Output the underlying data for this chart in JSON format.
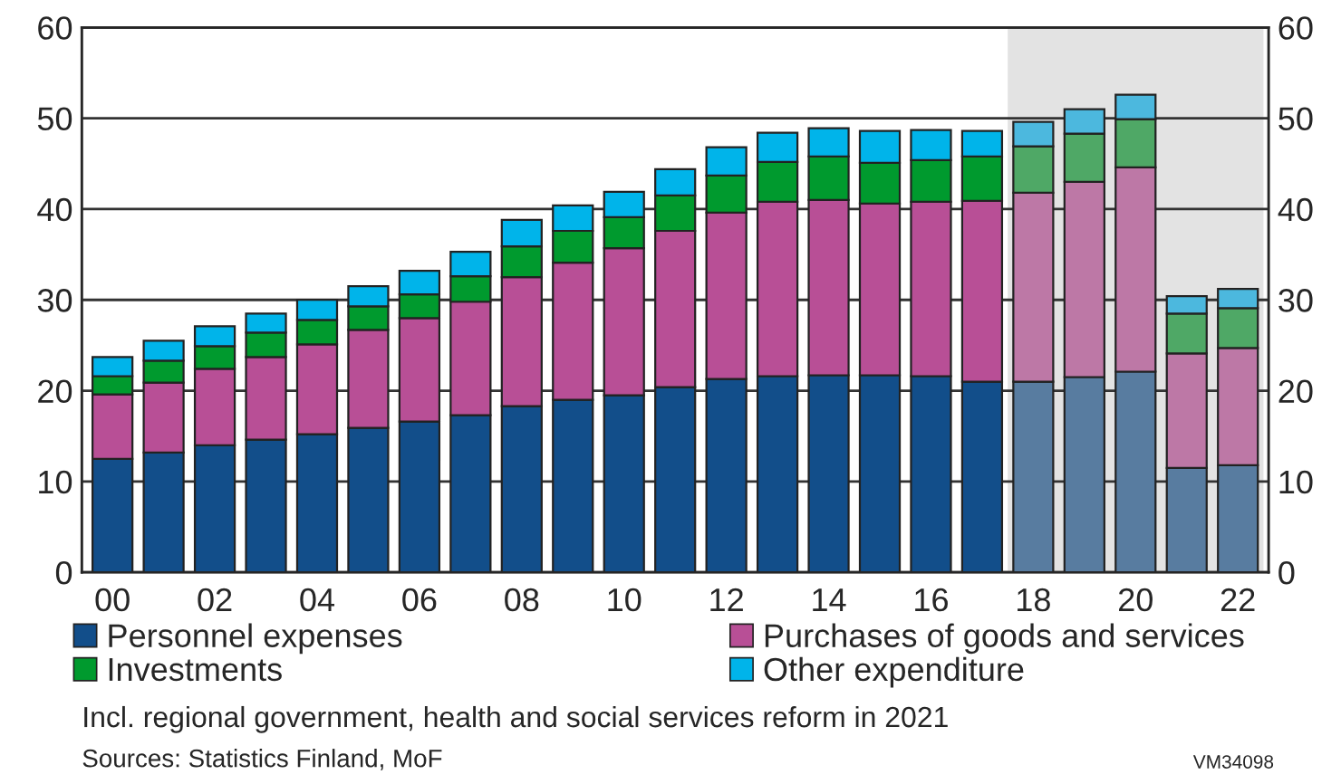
{
  "chart_data": {
    "type": "bar",
    "stacked": true,
    "categories": [
      "00",
      null,
      "02",
      null,
      "04",
      null,
      "06",
      null,
      "08",
      null,
      "10",
      null,
      "12",
      null,
      "14",
      null,
      "16",
      null,
      "18",
      null,
      "20",
      null,
      "22"
    ],
    "series": [
      {
        "name": "Personnel expenses",
        "colors": [
          "#124e8a",
          "#124e8a",
          "#124e8a",
          "#124e8a",
          "#124e8a",
          "#124e8a",
          "#124e8a",
          "#124e8a",
          "#124e8a",
          "#124e8a",
          "#124e8a",
          "#124e8a",
          "#124e8a",
          "#124e8a",
          "#124e8a",
          "#124e8a",
          "#124e8a",
          "#124e8a",
          "#587ca0",
          "#587ca0",
          "#587ca0",
          "#587ca0",
          "#587ca0"
        ],
        "values": [
          12.5,
          13.2,
          14.0,
          14.6,
          15.2,
          15.9,
          16.6,
          17.3,
          18.3,
          19.0,
          19.5,
          20.4,
          21.3,
          21.6,
          21.7,
          21.7,
          21.6,
          21.0,
          21.0,
          21.5,
          22.1,
          11.5,
          11.8
        ]
      },
      {
        "name": "Purchases of goods and services",
        "colors": [
          "#b84f96",
          "#b84f96",
          "#b84f96",
          "#b84f96",
          "#b84f96",
          "#b84f96",
          "#b84f96",
          "#b84f96",
          "#b84f96",
          "#b84f96",
          "#b84f96",
          "#b84f96",
          "#b84f96",
          "#b84f96",
          "#b84f96",
          "#b84f96",
          "#b84f96",
          "#b84f96",
          "#bd78a6",
          "#bd78a6",
          "#bd78a6",
          "#bd78a6",
          "#bd78a6"
        ],
        "values": [
          7.1,
          7.7,
          8.4,
          9.1,
          9.9,
          10.8,
          11.4,
          12.5,
          14.2,
          15.1,
          16.2,
          17.2,
          18.3,
          19.2,
          19.3,
          18.9,
          19.2,
          19.9,
          20.8,
          21.5,
          22.5,
          12.6,
          12.9
        ]
      },
      {
        "name": "Investments",
        "colors": [
          "#009a2e",
          "#009a2e",
          "#009a2e",
          "#009a2e",
          "#009a2e",
          "#009a2e",
          "#009a2e",
          "#009a2e",
          "#009a2e",
          "#009a2e",
          "#009a2e",
          "#009a2e",
          "#009a2e",
          "#009a2e",
          "#009a2e",
          "#009a2e",
          "#009a2e",
          "#009a2e",
          "#4fa866",
          "#4fa866",
          "#4fa866",
          "#4fa866",
          "#4fa866"
        ],
        "values": [
          2.0,
          2.4,
          2.5,
          2.7,
          2.7,
          2.6,
          2.6,
          2.8,
          3.4,
          3.5,
          3.4,
          3.9,
          4.1,
          4.4,
          4.8,
          4.5,
          4.6,
          4.9,
          5.1,
          5.3,
          5.3,
          4.4,
          4.4
        ]
      },
      {
        "name": "Other expenditure",
        "colors": [
          "#00b4ea",
          "#00b4ea",
          "#00b4ea",
          "#00b4ea",
          "#00b4ea",
          "#00b4ea",
          "#00b4ea",
          "#00b4ea",
          "#00b4ea",
          "#00b4ea",
          "#00b4ea",
          "#00b4ea",
          "#00b4ea",
          "#00b4ea",
          "#00b4ea",
          "#00b4ea",
          "#00b4ea",
          "#00b4ea",
          "#4cb8de",
          "#4cb8de",
          "#4cb8de",
          "#4cb8de",
          "#4cb8de"
        ],
        "values": [
          2.1,
          2.2,
          2.2,
          2.1,
          2.2,
          2.2,
          2.6,
          2.7,
          2.9,
          2.8,
          2.8,
          2.9,
          3.1,
          3.2,
          3.1,
          3.5,
          3.3,
          2.8,
          2.7,
          2.7,
          2.7,
          1.9,
          2.1
        ]
      }
    ],
    "ylim": [
      0,
      60
    ],
    "yticks": [
      0,
      10,
      20,
      30,
      40,
      50,
      60
    ],
    "y2lim": [
      0,
      60
    ],
    "y2ticks": [
      0,
      10,
      20,
      30,
      40,
      50,
      60
    ],
    "grid": "y",
    "legend": "bottom",
    "bands": [
      {
        "axis": "x",
        "from": "18",
        "to": "22",
        "color": "#e3e3e3"
      }
    ],
    "annotations": [
      "Incl. regional government, health and social services reform in 2021",
      "Sources: Statistics Finland, MoF",
      "VM34098"
    ]
  }
}
